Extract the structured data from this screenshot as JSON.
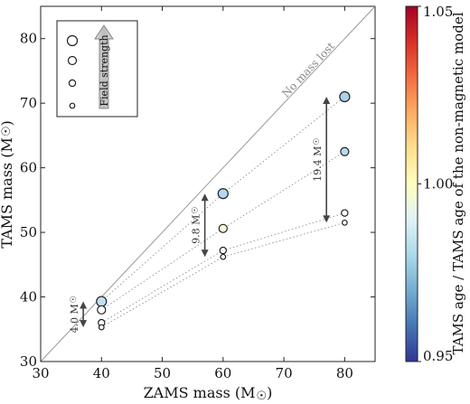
{
  "chart_data": {
    "type": "scatter",
    "xlabel": "ZAMS mass (M",
    "ylabel": "TAMS mass (M",
    "xlim": [
      30,
      85
    ],
    "ylim": [
      30,
      85
    ],
    "xticks": [
      "30",
      "40",
      "50",
      "60",
      "70",
      "80"
    ],
    "yticks": [
      "30",
      "40",
      "50",
      "60",
      "70",
      "80"
    ],
    "grid": false,
    "identity_line_label": "No mass lost",
    "legend": {
      "placement": "top-left",
      "arrow_label": "Field strength"
    },
    "series": [
      {
        "points": [
          {
            "x": 40,
            "y": 39.3,
            "color": "#bfe0f2"
          },
          {
            "x": 60,
            "y": 56.0,
            "color": "#b3d9ef"
          },
          {
            "x": 80,
            "y": 71.0,
            "color": "#a9d3ed"
          }
        ]
      },
      {
        "points": [
          {
            "x": 40,
            "y": 38.0,
            "color": "#ffffff"
          },
          {
            "x": 60,
            "y": 50.6,
            "color": "#fff5d4"
          },
          {
            "x": 80,
            "y": 62.5,
            "color": "#b5daef"
          }
        ]
      },
      {
        "points": [
          {
            "x": 40,
            "y": 36.0,
            "color": "#ffffff"
          },
          {
            "x": 60,
            "y": 47.2,
            "color": "#ffffff"
          },
          {
            "x": 80,
            "y": 53.0,
            "color": "#ffffff"
          }
        ]
      },
      {
        "points": [
          {
            "x": 40,
            "y": 35.3,
            "color": "#ffffff"
          },
          {
            "x": 60,
            "y": 46.2,
            "color": "#ffffff"
          },
          {
            "x": 80,
            "y": 51.5,
            "color": "#ffffff"
          }
        ]
      }
    ],
    "mass_loss_annotations": [
      {
        "x": 37,
        "y_top": 39.3,
        "y_bottom": 35.3,
        "label": "4.0 M"
      },
      {
        "x": 57,
        "y_top": 56.0,
        "y_bottom": 46.2,
        "label": "9.8 M"
      },
      {
        "x": 77,
        "y_top": 71.0,
        "y_bottom": 51.5,
        "label": "19.4 M"
      }
    ],
    "colorbar": {
      "label": "TAMS age / TAMS age of the non-magnetic model",
      "range": [
        0.95,
        1.05
      ],
      "ticks": [
        "0.95",
        "1.00",
        "1.05"
      ],
      "colormap": [
        "#313695",
        "#4575b4",
        "#74add1",
        "#abd9e9",
        "#e0f3f8",
        "#ffffbf",
        "#fee090",
        "#fdae61",
        "#f46d43",
        "#d73027",
        "#a50026"
      ]
    }
  }
}
